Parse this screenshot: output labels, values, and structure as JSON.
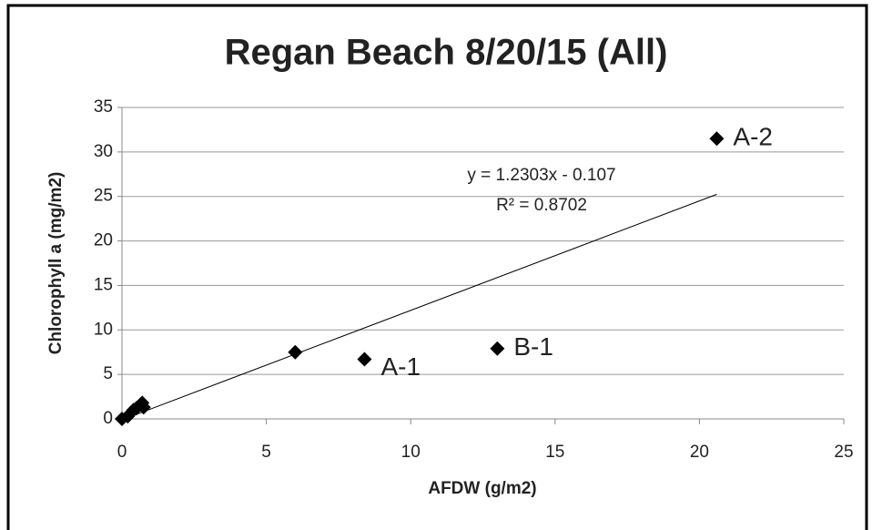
{
  "chart_data": {
    "type": "scatter",
    "title": "Regan Beach 8/20/15 (All)",
    "x_label": "AFDW (g/m2)",
    "y_label": "Chlorophyll a (mg/m2)",
    "x": [
      0,
      0.2,
      0.4,
      0.5,
      0.7,
      0.75,
      6,
      8.4,
      13,
      20.6
    ],
    "values": [
      0,
      0.3,
      1.0,
      1.2,
      1.8,
      1.3,
      7.5,
      6.7,
      7.9,
      31.5
    ],
    "point_labels": [
      null,
      null,
      null,
      null,
      null,
      null,
      null,
      "A-1",
      "B-1",
      "A-2"
    ],
    "color": "#000000",
    "trendline": {
      "equation": "y = 1.2303x - 0.107",
      "r2": "R² = 0.8702",
      "slope": 1.2303,
      "intercept": -0.107,
      "x": [
        0,
        20.6
      ]
    },
    "xlim": [
      0,
      25
    ],
    "xticks": [
      0,
      5,
      10,
      15,
      20,
      25
    ],
    "ylim": [
      0,
      35
    ],
    "yticks": [
      0,
      5,
      10,
      15,
      20,
      25,
      30,
      35
    ],
    "grid": true
  }
}
